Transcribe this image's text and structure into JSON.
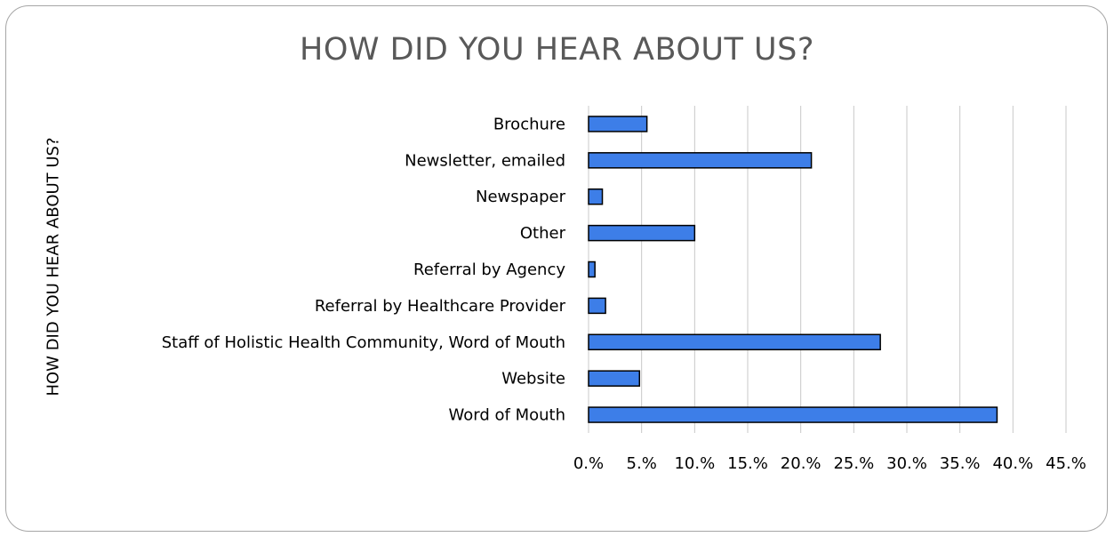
{
  "chart_data": {
    "type": "bar",
    "orientation": "horizontal",
    "title": "HOW DID YOU HEAR ABOUT US?",
    "ylabel": "HOW DID YOU HEAR ABOUT US?",
    "xlabel": "",
    "categories": [
      "Brochure",
      "Newsletter, emailed",
      "Newspaper",
      "Other",
      "Referral by Agency",
      "Referral by Healthcare Provider",
      "Staff of Holistic Health Community, Word of Mouth",
      "Website",
      "Word of Mouth"
    ],
    "values": [
      5.5,
      21.0,
      1.3,
      10.0,
      0.6,
      1.6,
      27.5,
      4.8,
      38.5
    ],
    "xlim": [
      0,
      45
    ],
    "ticks": [
      0,
      5,
      10,
      15,
      20,
      25,
      30,
      35,
      40,
      45
    ],
    "tick_labels": [
      "0.%",
      "5.%",
      "10.%",
      "15.%",
      "20.%",
      "25.%",
      "30.%",
      "35.%",
      "40.%",
      "45.%"
    ],
    "grid": "vertical",
    "legend": "none",
    "colors": {
      "bar_fill": "#3d7ee8",
      "bar_stroke": "#000000",
      "grid": "#c8c8c8",
      "title": "#595959",
      "frame": "#a6a6a6"
    }
  }
}
